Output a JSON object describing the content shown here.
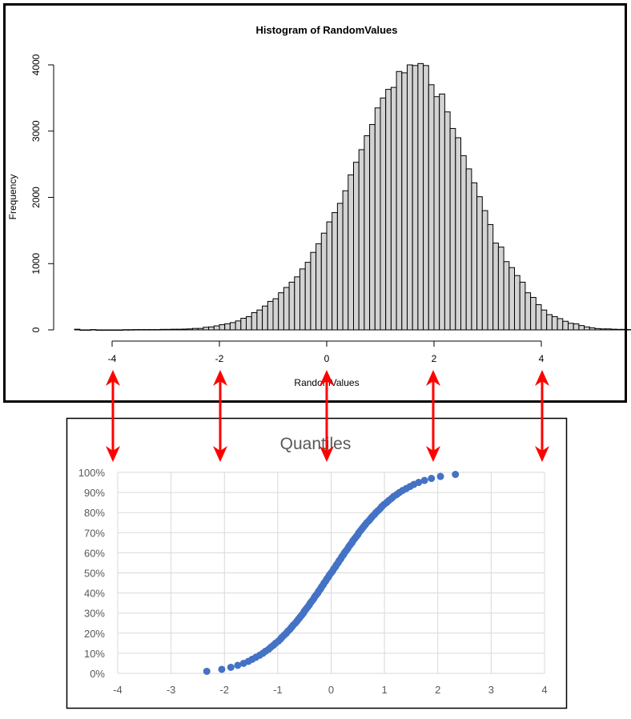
{
  "chart_data": [
    {
      "type": "bar",
      "title": "Histogram of RandomValues",
      "xlabel": "RandomValues",
      "ylabel": "Frequency",
      "xlim": [
        -4.7,
        4.7
      ],
      "ylim": [
        0,
        4000
      ],
      "x_ticks": [
        "-4",
        "-2",
        "0",
        "2",
        "4"
      ],
      "y_ticks": [
        "0",
        "1000",
        "2000",
        "3000",
        "4000"
      ],
      "grid": false,
      "bin_width": 0.1,
      "bin_start": -4.7,
      "values": [
        10,
        0,
        0,
        5,
        0,
        0,
        0,
        0,
        0,
        3,
        3,
        5,
        5,
        5,
        5,
        5,
        8,
        8,
        10,
        10,
        12,
        15,
        22,
        22,
        40,
        45,
        60,
        78,
        92,
        110,
        135,
        175,
        200,
        260,
        300,
        360,
        430,
        470,
        560,
        640,
        720,
        800,
        920,
        1020,
        1170,
        1300,
        1460,
        1630,
        1770,
        1910,
        2100,
        2340,
        2530,
        2720,
        2930,
        3100,
        3350,
        3500,
        3630,
        3660,
        3900,
        3880,
        4000,
        3990,
        4020,
        3990,
        3700,
        3520,
        3560,
        3290,
        3040,
        2900,
        2630,
        2430,
        2220,
        2010,
        1800,
        1590,
        1310,
        1250,
        1030,
        940,
        820,
        720,
        560,
        490,
        380,
        300,
        230,
        200,
        170,
        130,
        100,
        90,
        65,
        45,
        30,
        20,
        15,
        15,
        10,
        8,
        8,
        5,
        5,
        5,
        3,
        5,
        3,
        3,
        5,
        3,
        3,
        3,
        3,
        0,
        3,
        0,
        0,
        0,
        0,
        0,
        5
      ]
    },
    {
      "type": "scatter",
      "title": "Quantiles",
      "xlabel": "",
      "ylabel": "",
      "xlim": [
        -4,
        4
      ],
      "ylim": [
        0,
        1
      ],
      "x_ticks": [
        "-4",
        "-3",
        "-2",
        "-1",
        "0",
        "1",
        "2",
        "3",
        "4"
      ],
      "y_ticks": [
        "0%",
        "10%",
        "20%",
        "30%",
        "40%",
        "50%",
        "60%",
        "70%",
        "80%",
        "90%",
        "100%"
      ],
      "grid": true,
      "marker_color": "#4472c4",
      "series": [
        {
          "name": "Quantiles",
          "x": [
            -2.33,
            -2.05,
            -1.88,
            -1.75,
            -1.64,
            -1.55,
            -1.48,
            -1.41,
            -1.34,
            -1.28,
            -1.23,
            -1.17,
            -1.13,
            -1.08,
            -1.04,
            -0.99,
            -0.95,
            -0.92,
            -0.88,
            -0.84,
            -0.81,
            -0.77,
            -0.74,
            -0.71,
            -0.67,
            -0.64,
            -0.61,
            -0.58,
            -0.55,
            -0.52,
            -0.5,
            -0.47,
            -0.44,
            -0.41,
            -0.39,
            -0.36,
            -0.33,
            -0.31,
            -0.28,
            -0.25,
            -0.23,
            -0.2,
            -0.18,
            -0.15,
            -0.13,
            -0.1,
            -0.08,
            -0.05,
            -0.03,
            0.0,
            0.03,
            0.05,
            0.08,
            0.1,
            0.13,
            0.15,
            0.18,
            0.2,
            0.23,
            0.25,
            0.28,
            0.31,
            0.33,
            0.36,
            0.39,
            0.41,
            0.44,
            0.47,
            0.5,
            0.52,
            0.55,
            0.58,
            0.61,
            0.64,
            0.67,
            0.71,
            0.74,
            0.77,
            0.81,
            0.84,
            0.88,
            0.92,
            0.95,
            0.99,
            1.04,
            1.08,
            1.13,
            1.17,
            1.23,
            1.28,
            1.34,
            1.41,
            1.48,
            1.55,
            1.64,
            1.75,
            1.88,
            2.05,
            2.33
          ],
          "y": [
            0.01,
            0.02,
            0.03,
            0.04,
            0.05,
            0.06,
            0.07,
            0.08,
            0.09,
            0.1,
            0.11,
            0.12,
            0.13,
            0.14,
            0.15,
            0.16,
            0.17,
            0.18,
            0.19,
            0.2,
            0.21,
            0.22,
            0.23,
            0.24,
            0.25,
            0.26,
            0.27,
            0.28,
            0.29,
            0.3,
            0.31,
            0.32,
            0.33,
            0.34,
            0.35,
            0.36,
            0.37,
            0.38,
            0.39,
            0.4,
            0.41,
            0.42,
            0.43,
            0.44,
            0.45,
            0.46,
            0.47,
            0.48,
            0.49,
            0.5,
            0.51,
            0.52,
            0.53,
            0.54,
            0.55,
            0.56,
            0.57,
            0.58,
            0.59,
            0.6,
            0.61,
            0.62,
            0.63,
            0.64,
            0.65,
            0.66,
            0.67,
            0.68,
            0.69,
            0.7,
            0.71,
            0.72,
            0.73,
            0.74,
            0.75,
            0.76,
            0.77,
            0.78,
            0.79,
            0.8,
            0.81,
            0.82,
            0.83,
            0.84,
            0.85,
            0.86,
            0.87,
            0.88,
            0.89,
            0.9,
            0.91,
            0.92,
            0.93,
            0.94,
            0.95,
            0.96,
            0.97,
            0.98,
            0.99
          ]
        }
      ]
    }
  ],
  "annotations": {
    "arrow_color": "#ff0000",
    "arrows_at_x": [
      -4,
      -2,
      0,
      2,
      4
    ],
    "description": "Double-headed red arrows linking histogram x-ticks to quantile chart x positions"
  },
  "histogram": {
    "title": "Histogram of RandomValues",
    "xlabel": "RandomValues",
    "ylabel": "Frequency",
    "bar_fill": "#d3d3d3",
    "bar_stroke": "#000000"
  },
  "quantiles": {
    "title": "Quantiles",
    "grid_color": "#d9d9d9",
    "marker_color": "#4472c4"
  }
}
